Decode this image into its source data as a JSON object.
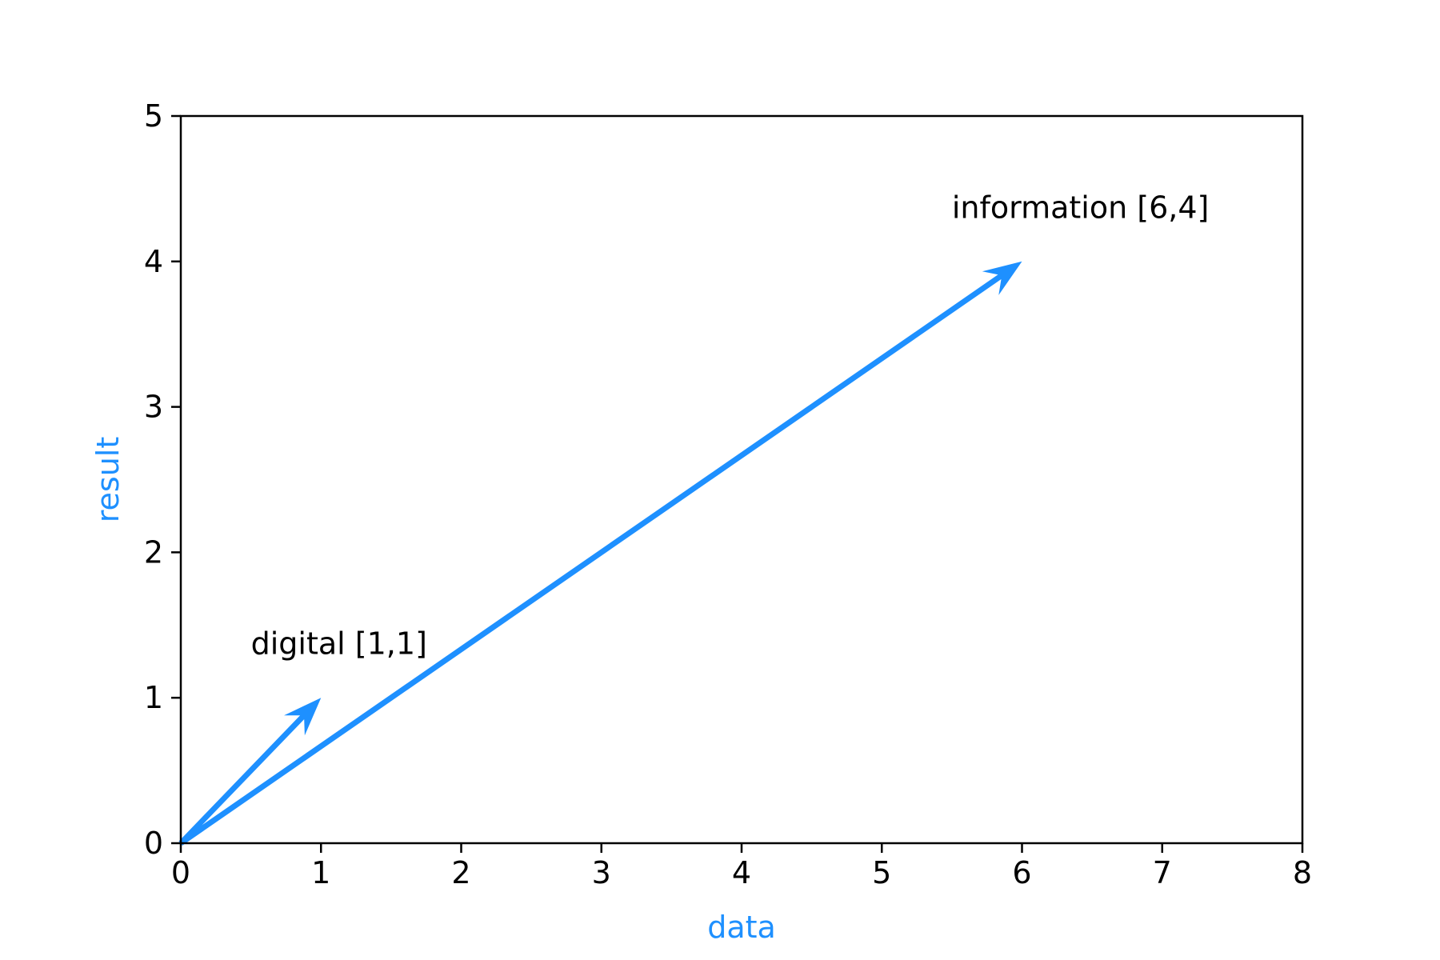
{
  "chart_data": {
    "type": "quiver",
    "title": "",
    "xlabel": "data",
    "ylabel": "result",
    "xlim": [
      0,
      8
    ],
    "ylim": [
      0,
      5
    ],
    "xticks": [
      "0",
      "1",
      "2",
      "3",
      "4",
      "5",
      "6",
      "7",
      "8"
    ],
    "yticks": [
      "0",
      "1",
      "2",
      "3",
      "4",
      "5"
    ],
    "grid": false,
    "label_color": "#1e90ff",
    "arrow_color": "#1e90ff",
    "vectors": [
      {
        "label": "digital [1,1]",
        "x": 1,
        "y": 1,
        "label_x": 0.5,
        "label_y": 1.3
      },
      {
        "label": "information [6,4]",
        "x": 6,
        "y": 4,
        "label_x": 5.5,
        "label_y": 4.3
      }
    ]
  }
}
